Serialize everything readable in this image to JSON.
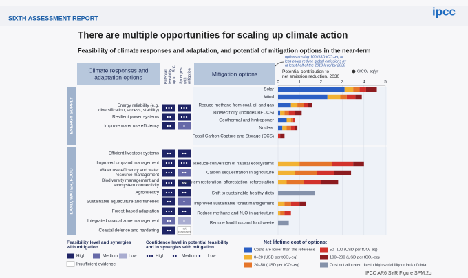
{
  "header": {
    "report": "SIXTH ASSESSMENT REPORT",
    "logo": "ipcc"
  },
  "title": "There are multiple opportunities for scaling up climate action",
  "subtitle": "Feasibility of climate responses and adaptation, and potential of mitigation options in the near-term",
  "adaptation": {
    "heading": [
      "Climate responses and",
      "adaptation options"
    ],
    "columns": [
      [
        "Potential",
        "feasibility",
        "up to 1.5°C"
      ],
      [
        "Synergies",
        "with",
        "mitigation"
      ]
    ],
    "sectors": [
      {
        "name": "ENERGY SUPPLY",
        "rows": [
          {
            "label": [
              "Energy reliability (e.g.",
              "diversification, access, stability)"
            ],
            "feasibility": "High",
            "feasibility_confidence": 3,
            "synergy": "High",
            "synergy_confidence": 3
          },
          {
            "label": [
              "Resilient power systems"
            ],
            "feasibility": "High",
            "feasibility_confidence": 2,
            "synergy": "High",
            "synergy_confidence": 3
          },
          {
            "label": [
              "Improve water use efficiency"
            ],
            "feasibility": "High",
            "feasibility_confidence": 2,
            "synergy": "Medium",
            "synergy_confidence": 1
          }
        ]
      },
      {
        "name": "LAND, WATER, FOOD",
        "rows": [
          {
            "label": [
              "Efficient livestock systems"
            ],
            "feasibility": "High",
            "feasibility_confidence": 2,
            "synergy": "High",
            "synergy_confidence": 2
          },
          {
            "label": [
              "Improved cropland management"
            ],
            "feasibility": "High",
            "feasibility_confidence": 3,
            "synergy": "High",
            "synergy_confidence": 3
          },
          {
            "label": [
              "Water use efficiency and water",
              "resource management"
            ],
            "feasibility": "High",
            "feasibility_confidence": 3,
            "synergy": "Medium",
            "synergy_confidence": 2
          },
          {
            "label": [
              "Biodiversity management and",
              "ecosystem connectivity"
            ],
            "feasibility": "High",
            "feasibility_confidence": 3,
            "synergy": "High",
            "synergy_confidence": 2
          },
          {
            "label": [
              "Agroforestry"
            ],
            "feasibility": "High",
            "feasibility_confidence": 3,
            "synergy": "High",
            "synergy_confidence": 2
          },
          {
            "label": [
              "Sustainable aquaculture and fisheries"
            ],
            "feasibility": "High",
            "feasibility_confidence": 2,
            "synergy": "Medium",
            "synergy_confidence": 1
          },
          {
            "label": [
              "Forest-based adaptation"
            ],
            "feasibility": "High",
            "feasibility_confidence": 3,
            "synergy": "High",
            "synergy_confidence": 2
          },
          {
            "label": [
              "Integrated coastal zone management"
            ],
            "feasibility": "Medium",
            "feasibility_confidence": 2,
            "synergy": "Low",
            "synergy_confidence": 1
          },
          {
            "label": [
              "Coastal defence and hardening"
            ],
            "feasibility": "High",
            "feasibility_confidence": 2,
            "synergy": "Insufficient evidence",
            "synergy_confidence": null,
            "note": [
              "not",
              "assessed"
            ]
          }
        ]
      }
    ]
  },
  "legend": {
    "feasibility_title": [
      "Feasibility level and synergies",
      "with mitigation"
    ],
    "levels": [
      {
        "name": "High",
        "color": "#1f2466"
      },
      {
        "name": "Medium",
        "color": "#6669a8"
      },
      {
        "name": "Low",
        "color": "#a9acd0"
      },
      {
        "name": "Insufficient evidence",
        "color": "#ffffff"
      }
    ],
    "confidence_title": [
      "Confidence level in potential feasibility",
      "and in synergies with mitigation"
    ],
    "confidence": [
      {
        "dots": 3,
        "name": "High"
      },
      {
        "dots": 2,
        "name": "Medium"
      },
      {
        "dots": 1,
        "name": "Low"
      }
    ],
    "cost_title": "Net lifetime cost of options:"
  },
  "chart_data": {
    "type": "bar",
    "orientation": "horizontal",
    "stacked": true,
    "heading": "Mitigation options",
    "note": [
      "options costing 100 USD tCO₂-eq or",
      "less could reduce global emissions by",
      "at least half of the 2019 level by 2030"
    ],
    "x_label": [
      "Potential contribution to",
      "net emission reduction, 2030"
    ],
    "unit": "GtCO₂-eq/yr",
    "categories": [
      "Solar",
      "Wind",
      "Reduce methane from coal, oil and gas",
      "Bioelectricity (includes BECCS)",
      "Geothermal and hydropower",
      "Nuclear",
      "Fossil Carbon Capture and Storage (CCS)",
      "Reduce conversion of natural ecosystems",
      "Carbon sequestration in agriculture",
      "Ecosystem restoration, afforestation, reforestation",
      "Shift to sustainable healthy diets",
      "Improved sustainable forest management",
      "Reduce methane and N₂O in agriculture",
      "Reduce food loss and food waste"
    ],
    "xlim": [
      0,
      5
    ],
    "xticks": [
      0,
      1,
      2,
      3,
      4,
      5
    ],
    "series": [
      {
        "name": "Costs are lower than the reference",
        "color": "#2b5fc4",
        "values": [
          3.1,
          2.3,
          0.6,
          0.1,
          0.4,
          0.2,
          0,
          0,
          0,
          0,
          0,
          0,
          0,
          0
        ]
      },
      {
        "name": "0–20 (USD per tCO₂-eq)",
        "color": "#f2b233",
        "values": [
          0.4,
          0.6,
          0.3,
          0.2,
          0.2,
          0.2,
          0,
          1.0,
          0.8,
          0.4,
          0,
          0.3,
          0.1,
          0
        ]
      },
      {
        "name": "20–50 (USD per tCO₂-eq)",
        "color": "#e5752a",
        "values": [
          0.3,
          0.3,
          0.3,
          0.2,
          0.1,
          0.2,
          0,
          1.5,
          1.0,
          0.8,
          0,
          0.3,
          0.2,
          0
        ]
      },
      {
        "name": "50–100 (USD per tCO₂-eq)",
        "color": "#d2322c",
        "values": [
          0.3,
          0.4,
          0.2,
          0.3,
          0.1,
          0.2,
          0.1,
          1.0,
          0.8,
          0.8,
          0,
          0.4,
          0.3,
          0
        ]
      },
      {
        "name": "100–200 (USD per tCO₂-eq)",
        "color": "#8c1b1f",
        "values": [
          0.5,
          0.3,
          0.2,
          0.3,
          0,
          0.1,
          0.2,
          0.5,
          0.8,
          0.8,
          0,
          0.3,
          0,
          0
        ]
      },
      {
        "name": "Cost not allocated due to high variability or lack of data",
        "color": "#8592aa",
        "values": [
          0,
          0,
          0,
          0,
          0,
          0,
          0,
          0,
          0,
          0,
          1.7,
          0,
          0,
          0.5
        ]
      }
    ]
  },
  "caption": "IPCC AR6 SYR Figure SPM.2c"
}
